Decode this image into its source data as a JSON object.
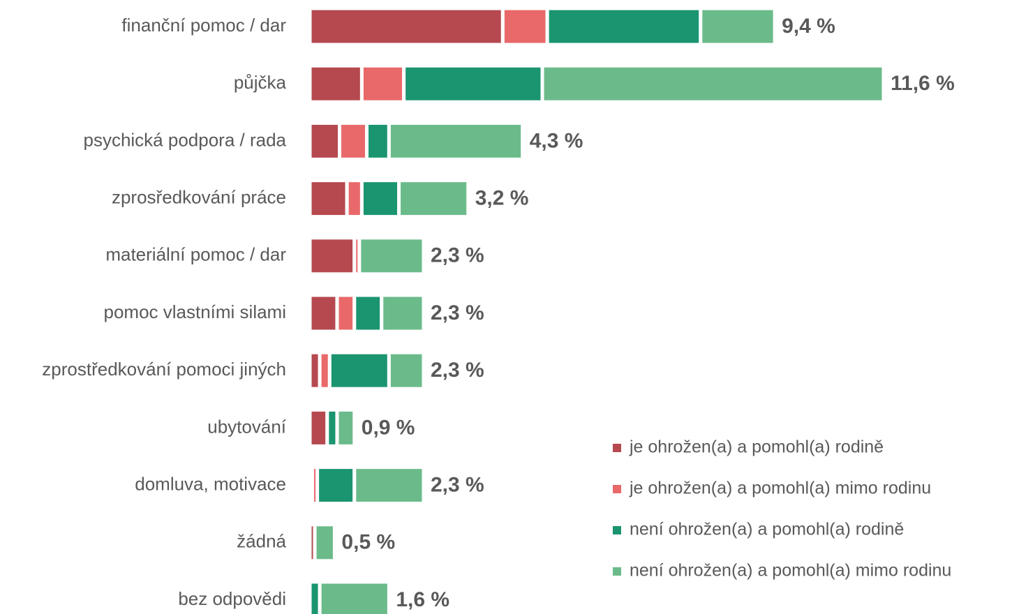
{
  "chart_data": {
    "type": "stacked-bar-horizontal",
    "categories": [
      "finanční pomoc / dar",
      "půjčka",
      "psychická podpora / rada",
      "zprosředkování práce",
      "materiální pomoc / dar",
      "pomoc vlastními silami",
      "zprostředkování pomoci jiných",
      "ubytování",
      "domluva, motivace",
      "žádná",
      "bez odpovědi"
    ],
    "series": [
      {
        "name": "je ohrožen(a) a pomohl(a) rodině",
        "color": "#b5494f",
        "values": [
          3.9,
          1.05,
          0.6,
          0.75,
          0.9,
          0.55,
          0.2,
          0.35,
          0.05,
          0.1,
          0
        ]
      },
      {
        "name": "je ohrožen(a) a pomohl(a) mimo rodinu",
        "color": "#e9696a",
        "values": [
          0.9,
          0.85,
          0.55,
          0.3,
          0.1,
          0.35,
          0.2,
          0,
          0.1,
          0,
          0
        ]
      },
      {
        "name": "není ohrožen(a) a pomohl(a) rodině",
        "color": "#1a9570",
        "values": [
          3.1,
          2.8,
          0.45,
          0.75,
          0,
          0.55,
          1.2,
          0.2,
          0.75,
          0,
          0.2
        ]
      },
      {
        "name": "není ohrožen(a) a pomohl(a) mimo rodinu",
        "color": "#6bbb8a",
        "values": [
          1.5,
          6.9,
          2.7,
          1.4,
          1.3,
          0.85,
          0.7,
          0.35,
          1.4,
          0.4,
          1.4
        ]
      }
    ],
    "totals": [
      9.4,
      11.6,
      4.3,
      3.2,
      2.3,
      2.3,
      2.3,
      0.9,
      2.3,
      0.5,
      1.6
    ],
    "total_labels": [
      "9,4 %",
      "11,6 %",
      "4,3 %",
      "3,2 %",
      "2,3 %",
      "2,3 %",
      "2,3 %",
      "0,9 %",
      "2,3 %",
      "0,5 %",
      "1,6 %"
    ],
    "legend": "bottom-right"
  }
}
